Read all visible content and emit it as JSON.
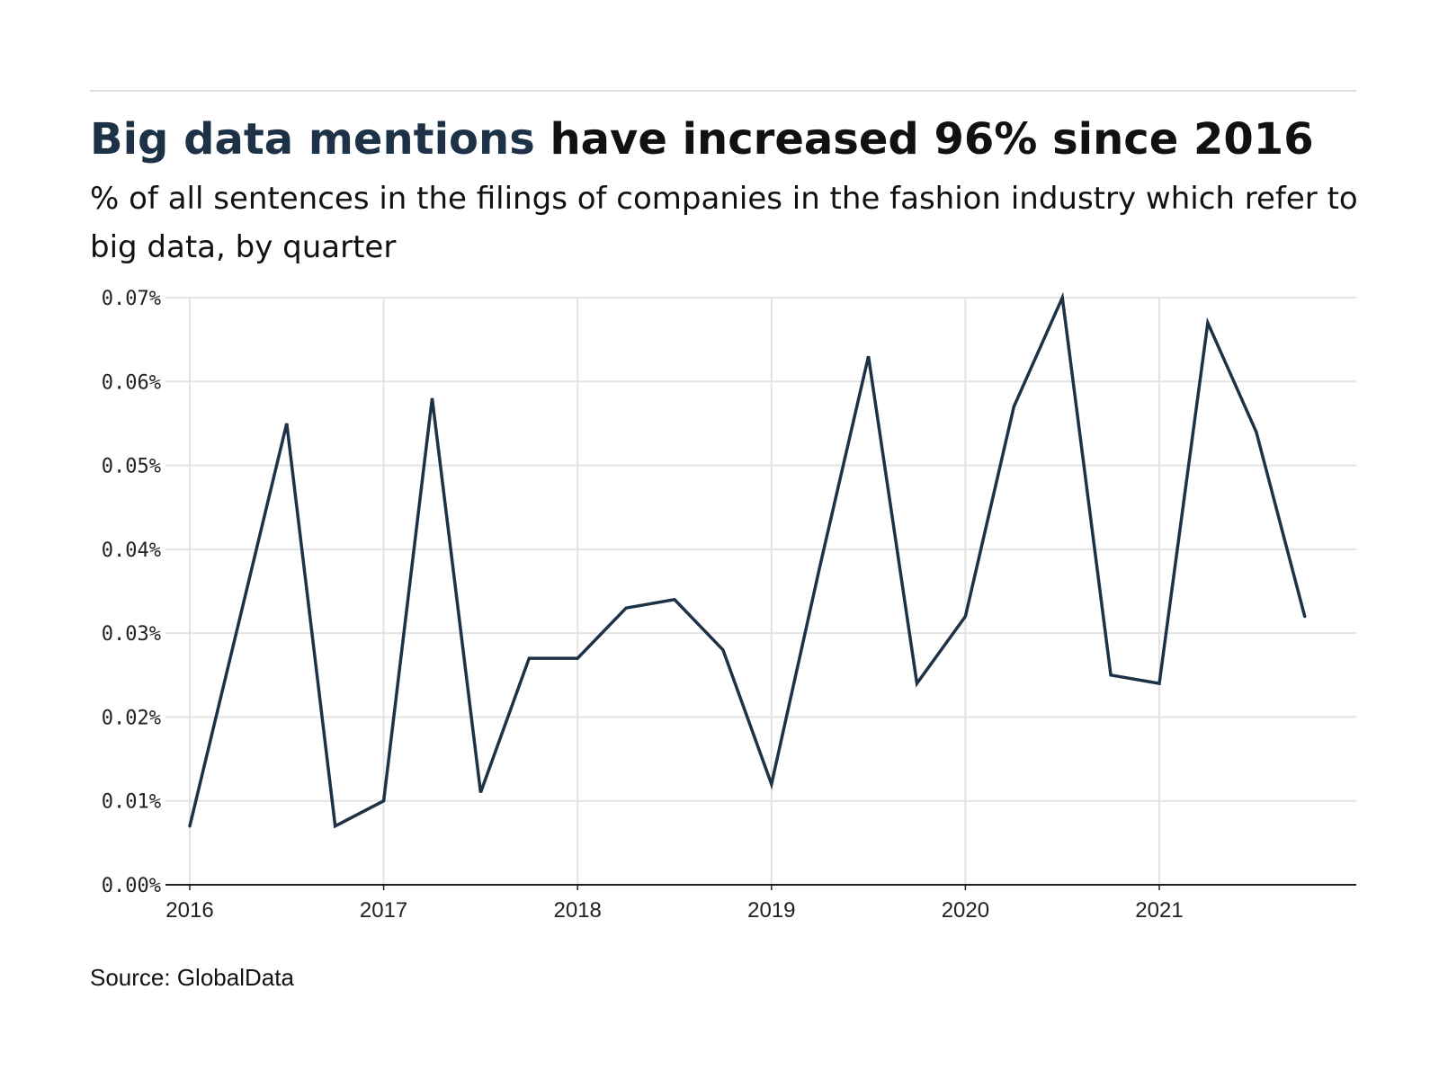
{
  "header": {
    "title_highlight": "Big data mentions",
    "title_rest": " have increased 96% since 2016",
    "subtitle": "% of all sentences in the filings of companies in the fashion industry which refer to big data, by quarter"
  },
  "footer": {
    "source": "Source: GlobalData"
  },
  "colors": {
    "line": "#1e3247",
    "grid": "#e3e3e3",
    "axis": "#222222",
    "title_highlight": "#1e3247"
  },
  "chart_data": {
    "type": "line",
    "title": "Big data mentions have increased 96% since 2016",
    "subtitle": "% of all sentences in the filings of companies in the fashion industry which refer to big data, by quarter",
    "xlabel": "",
    "ylabel": "",
    "x_ticks": [
      "2016",
      "2017",
      "2018",
      "2019",
      "2020",
      "2021"
    ],
    "y_ticks": [
      "0.00%",
      "0.01%",
      "0.02%",
      "0.03%",
      "0.04%",
      "0.05%",
      "0.06%",
      "0.07%"
    ],
    "x": [
      "2016 Q1",
      "2016 Q2",
      "2016 Q3",
      "2016 Q4",
      "2017 Q1",
      "2017 Q2",
      "2017 Q3",
      "2017 Q4",
      "2018 Q1",
      "2018 Q2",
      "2018 Q3",
      "2018 Q4",
      "2019 Q1",
      "2019 Q2",
      "2019 Q3",
      "2019 Q4",
      "2020 Q1",
      "2020 Q2",
      "2020 Q3",
      "2020 Q4",
      "2021 Q1",
      "2021 Q2",
      "2021 Q3",
      "2021 Q4"
    ],
    "series": [
      {
        "values": [
          0.007,
          0.031,
          0.055,
          0.007,
          0.01,
          0.058,
          0.011,
          0.027,
          0.027,
          0.033,
          0.034,
          0.028,
          0.012,
          0.038,
          0.063,
          0.024,
          0.032,
          0.057,
          0.07,
          0.025,
          0.024,
          0.067,
          0.054,
          0.032
        ]
      }
    ],
    "xlim": [
      "2016 Q1",
      "2021 Q4"
    ],
    "ylim": [
      0,
      0.07
    ],
    "grid": true,
    "legend": "none"
  }
}
